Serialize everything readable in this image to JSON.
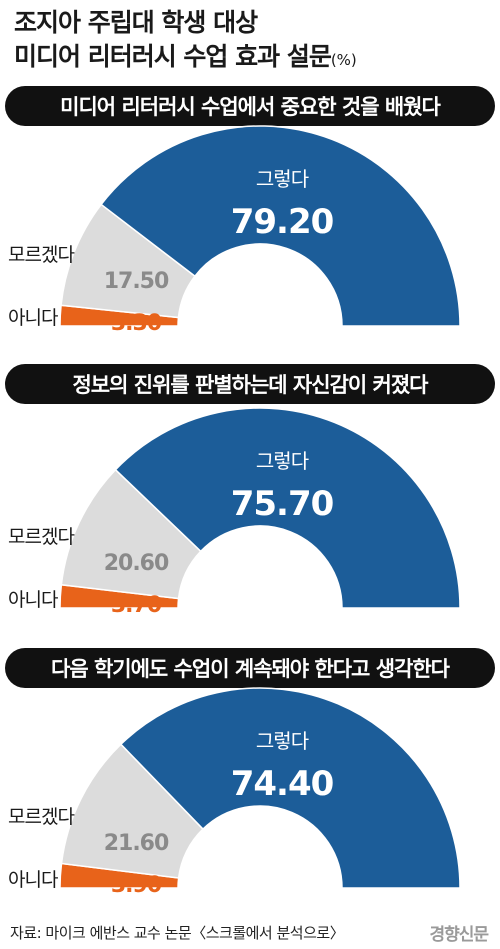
{
  "title": {
    "line1": "조지아 주립대 학생 대상",
    "line2": "미디어 리터러시 수업 효과 설문",
    "unit": "(%)"
  },
  "chart_data": [
    {
      "type": "pie",
      "title": "미디어 리터러시 수업에서 중요한 것을 배웠다",
      "categories": [
        "그렇다",
        "모르겠다",
        "아니다"
      ],
      "values": [
        79.2,
        17.5,
        3.3
      ],
      "labels": [
        "79.20",
        "17.50",
        "3.30"
      ],
      "colors": [
        "#1c5d99",
        "#dcdcdc",
        "#e8631a"
      ]
    },
    {
      "type": "pie",
      "title": "정보의 진위를 판별하는데 자신감이 커졌다",
      "categories": [
        "그렇다",
        "모르겠다",
        "아니다"
      ],
      "values": [
        75.7,
        20.6,
        3.7
      ],
      "labels": [
        "75.70",
        "20.60",
        "3.70"
      ],
      "colors": [
        "#1c5d99",
        "#dcdcdc",
        "#e8631a"
      ]
    },
    {
      "type": "pie",
      "title": "다음 학기에도 수업이 계속돼야 한다고 생각한다",
      "categories": [
        "그렇다",
        "모르겠다",
        "아니다"
      ],
      "values": [
        74.4,
        21.6,
        3.9
      ],
      "labels": [
        "74.40",
        "21.60",
        "3.90"
      ],
      "colors": [
        "#1c5d99",
        "#dcdcdc",
        "#e8631a"
      ]
    }
  ],
  "source": "자료: 마이크 에반스 교수 논문〈스크롤에서 분석으로〉",
  "logo": "경향신문"
}
